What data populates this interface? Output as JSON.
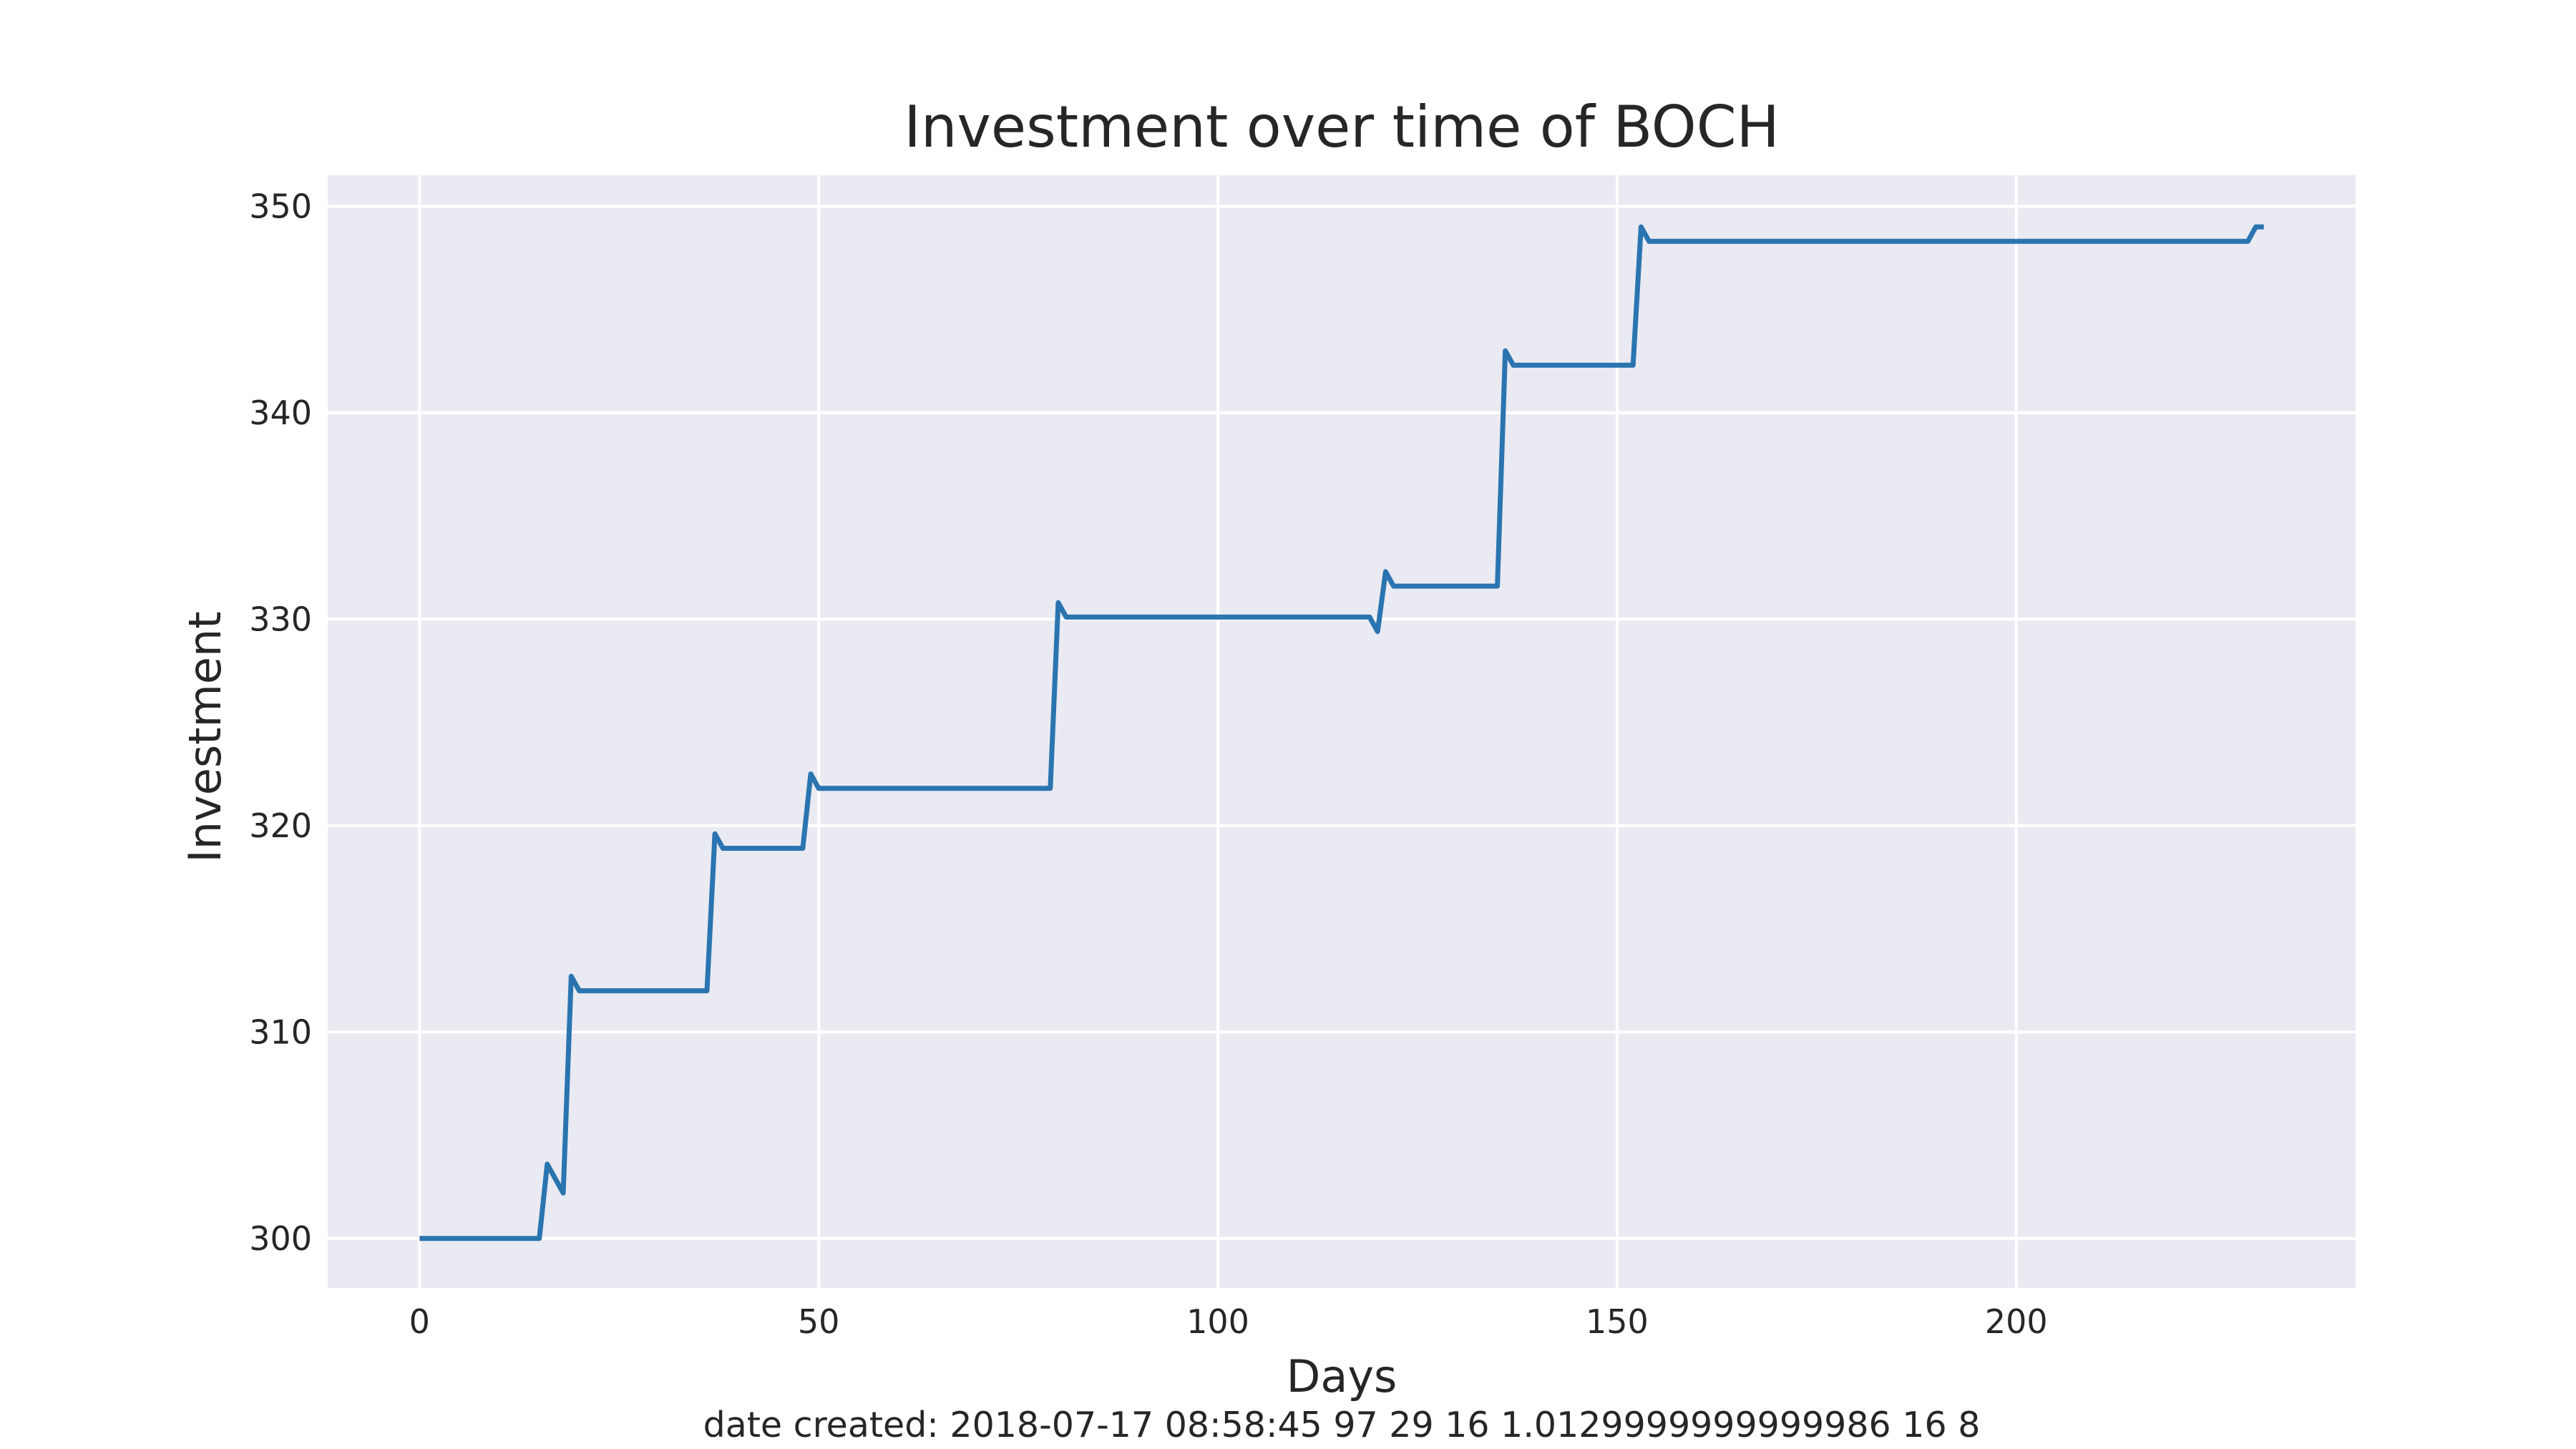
{
  "footer": "date created: 2018-07-17 08:58:45 97 29 16 1.0129999999999986 16 8",
  "chart_data": {
    "type": "line",
    "title": "Investment over time of BOCH",
    "xlabel": "Days",
    "ylabel": "Investment",
    "xlim": [
      -11.5,
      242.5
    ],
    "ylim": [
      297.6,
      351.5
    ],
    "xticks": [
      0,
      50,
      100,
      150,
      200
    ],
    "yticks": [
      300,
      310,
      320,
      330,
      340,
      350
    ],
    "grid": true,
    "background": "#eaeaf2",
    "grid_color": "#ffffff",
    "line_color": "#2a74b0",
    "series": [
      {
        "x": [
          0,
          15,
          16,
          18,
          19,
          20,
          36,
          37,
          38,
          48,
          49,
          50,
          79,
          80,
          81,
          119,
          120,
          121,
          122,
          135,
          136,
          137,
          152,
          153,
          154,
          229,
          230,
          231
        ],
        "y": [
          300,
          300,
          303.6,
          302.2,
          312.7,
          312.0,
          312.0,
          319.6,
          318.9,
          318.9,
          322.5,
          321.8,
          321.8,
          330.8,
          330.1,
          330.1,
          329.4,
          332.3,
          331.6,
          331.6,
          343.0,
          342.3,
          342.3,
          349.0,
          348.3,
          348.3,
          349.0,
          349.0
        ]
      }
    ]
  }
}
